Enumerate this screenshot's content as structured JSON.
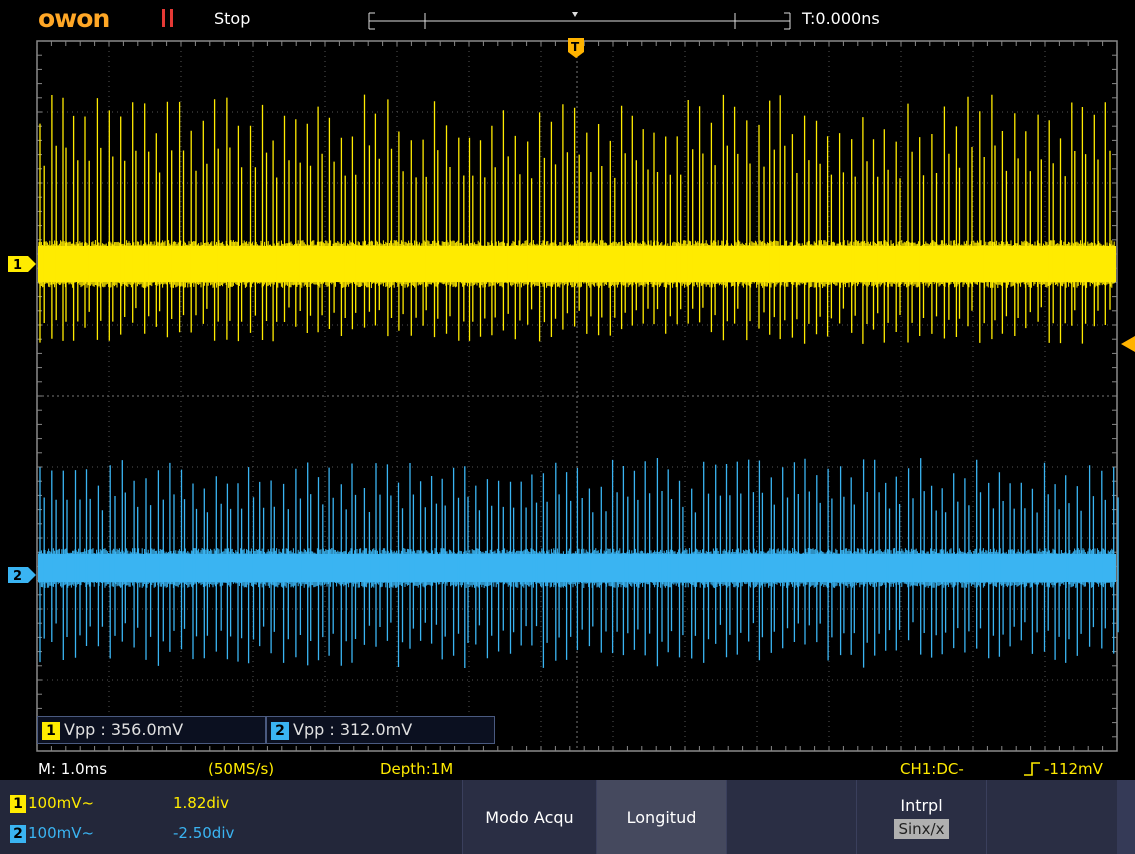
{
  "header": {
    "brand": "owon",
    "run_state": "Stop",
    "trigger_time": "T:0.000ns"
  },
  "markers": {
    "ch1": "1",
    "ch2": "2",
    "trigger": "T"
  },
  "measurements": [
    {
      "channel": "1",
      "text": "Vpp : 356.0mV",
      "color": "#ffeb00"
    },
    {
      "channel": "2",
      "text": "Vpp : 312.0mV",
      "color": "#3ab4f2"
    }
  ],
  "status": {
    "timebase": "M: 1.0ms",
    "sample_rate": "(50MS/s)",
    "depth": "Depth:1M",
    "trigger": "CH1:DC-",
    "trigger_level": "-112mV"
  },
  "channels": [
    {
      "num": "1",
      "scale": "100mV~",
      "offset": "1.82div",
      "color": "#ffeb00"
    },
    {
      "num": "2",
      "scale": "100mV~",
      "offset": "-2.50div",
      "color": "#3ab4f2"
    }
  ],
  "softkeys": {
    "acq_mode": "Modo Acqu",
    "length": "Longitud",
    "interp": "Intrpl",
    "interp_value": "Sinx/x"
  },
  "colors": {
    "ch1": "#ffeb00",
    "ch2": "#3ab4f2",
    "brand": "#ffa726",
    "trigger": "#ffb300"
  }
}
